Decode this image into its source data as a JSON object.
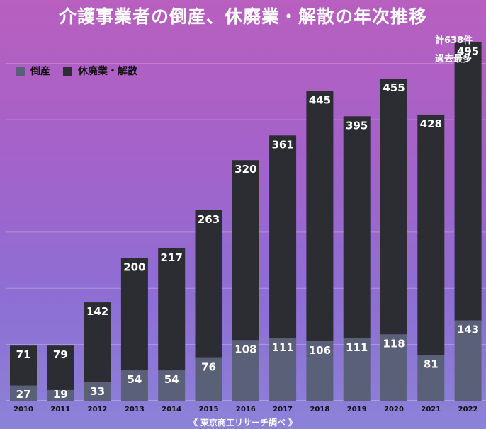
{
  "title": "介護事業者の倒産、休廃業・解散の年次推移",
  "note": [
    "計638件",
    "過去最多"
  ],
  "source": "《 東京商工リサーチ調べ 》",
  "colors": {
    "bankruptcy": "#5b6079",
    "closure": "#2b2d33",
    "background_top": "#b85fbf",
    "background_bottom": "#8c82d8"
  },
  "chart_data": {
    "type": "bar",
    "stacked": true,
    "title": "介護事業者の倒産、休廃業・解散の年次推移",
    "categories": [
      "2010",
      "2011",
      "2012",
      "2013",
      "2014",
      "2015",
      "2016",
      "2017",
      "2018",
      "2019",
      "2020",
      "2021",
      "2022"
    ],
    "series": [
      {
        "name": "倒産",
        "values": [
          27,
          19,
          33,
          54,
          54,
          76,
          108,
          111,
          106,
          111,
          118,
          81,
          143
        ]
      },
      {
        "name": "休廃業・解散",
        "values": [
          71,
          79,
          142,
          200,
          217,
          263,
          320,
          361,
          445,
          395,
          455,
          428,
          495
        ]
      }
    ],
    "legend_position": "top-left",
    "grid": true,
    "ylim": [
      0,
      650
    ],
    "annotations": [
      "計638件",
      "過去最多"
    ]
  }
}
